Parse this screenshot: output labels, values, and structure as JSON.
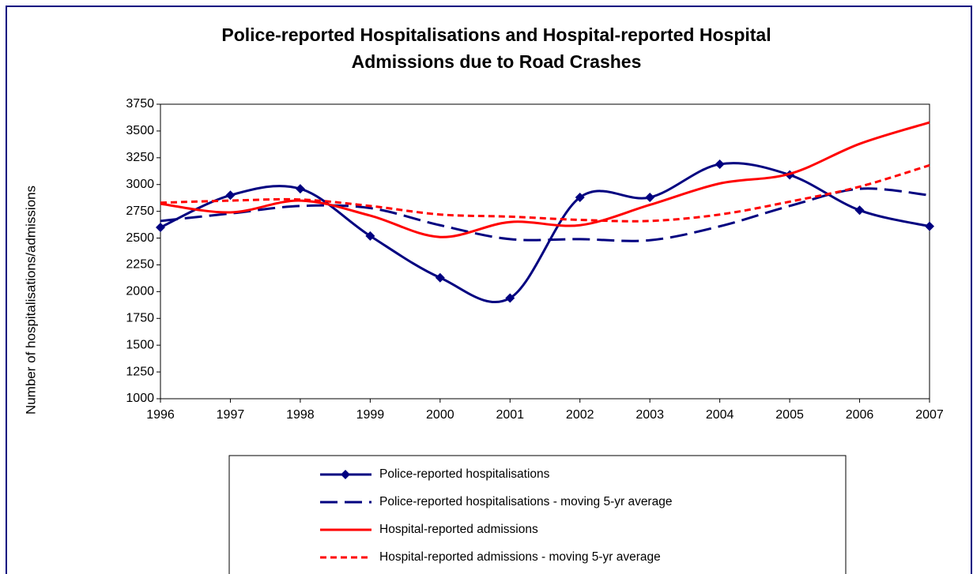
{
  "chart_data": {
    "type": "line",
    "title": [
      "Police-reported Hospitalisations and Hospital-reported Hospital",
      "Admissions due to Road Crashes"
    ],
    "y_label": "Number of hospitalisations/admissions",
    "categories": [
      "1996",
      "1997",
      "1998",
      "1999",
      "2000",
      "2001",
      "2002",
      "2003",
      "2004",
      "2005",
      "2006",
      "2007"
    ],
    "series": [
      {
        "name": "Police-reported  hospitalisations",
        "color": "#000080",
        "dash": "solid",
        "marker": "diamond",
        "values": [
          2600,
          2900,
          2960,
          2520,
          2130,
          1940,
          2880,
          2880,
          3190,
          3090,
          2760,
          2610
        ]
      },
      {
        "name": "Police-reported  hospitalisations  - moving 5-yr average",
        "color": "#000080",
        "dash": "dashed",
        "marker": "none",
        "values": [
          2660,
          2730,
          2800,
          2780,
          2620,
          2490,
          2490,
          2480,
          2610,
          2800,
          2960,
          2900
        ]
      },
      {
        "name": "Hospital-reported  admissions",
        "color": "#ff0000",
        "dash": "solid",
        "marker": "none",
        "values": [
          2820,
          2740,
          2850,
          2710,
          2510,
          2650,
          2620,
          2810,
          3010,
          3100,
          3380,
          3580
        ]
      },
      {
        "name": "Hospital-reported  admissions  - moving 5-yr average",
        "color": "#ff0000",
        "dash": "dotted",
        "marker": "none",
        "values": [
          2830,
          2850,
          2860,
          2800,
          2720,
          2700,
          2670,
          2660,
          2720,
          2840,
          2980,
          3180
        ]
      }
    ],
    "ylim": [
      1000,
      3750
    ],
    "yticks": [
      1000,
      1250,
      1500,
      1750,
      2000,
      2250,
      2500,
      2750,
      3000,
      3250,
      3500,
      3750
    ],
    "grid": false
  }
}
